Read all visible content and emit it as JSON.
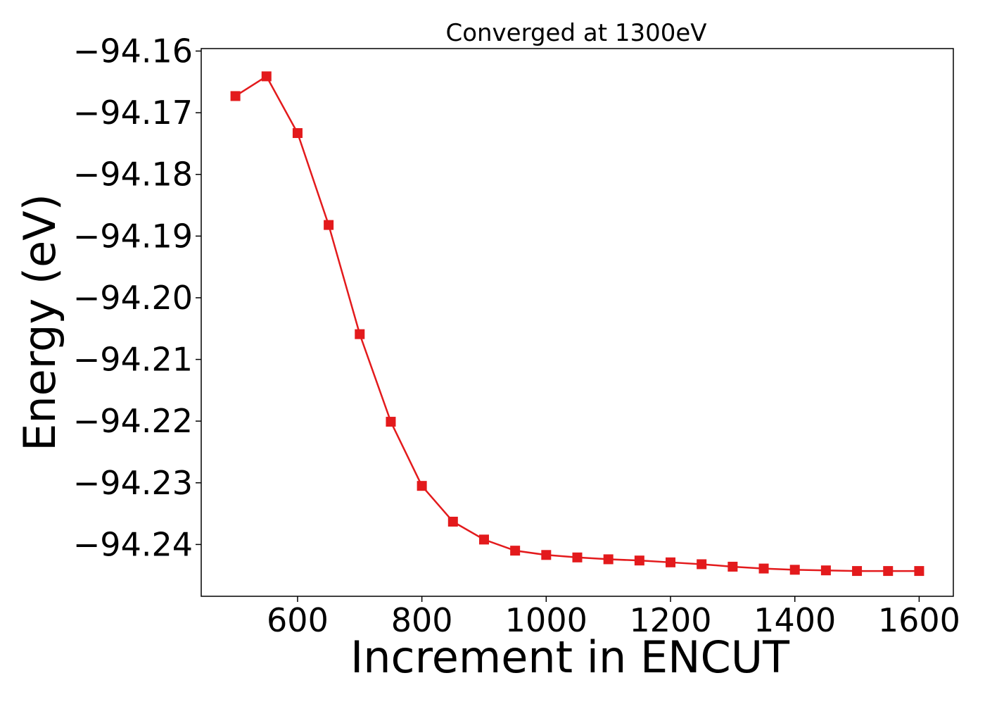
{
  "chart_data": {
    "type": "line",
    "title": "Converged at 1300eV",
    "xlabel": "Increment in ENCUT",
    "ylabel": "Energy (eV)",
    "xlim": [
      445,
      1655
    ],
    "ylim": [
      -94.2484,
      -94.1596
    ],
    "xticks": [
      600,
      800,
      1000,
      1200,
      1400,
      1600
    ],
    "yticks": [
      -94.16,
      -94.17,
      -94.18,
      -94.19,
      -94.2,
      -94.21,
      -94.22,
      -94.23,
      -94.24
    ],
    "xtick_labels": [
      "600",
      "800",
      "1000",
      "1200",
      "1400",
      "1600"
    ],
    "ytick_labels": [
      "−94.16",
      "−94.17",
      "−94.18",
      "−94.19",
      "−94.20",
      "−94.21",
      "−94.22",
      "−94.23",
      "−94.24"
    ],
    "grid": false,
    "series": [
      {
        "color": "#e31a1c",
        "marker": "square",
        "x": [
          500,
          550,
          600,
          650,
          700,
          750,
          800,
          850,
          900,
          950,
          1000,
          1050,
          1100,
          1150,
          1200,
          1250,
          1300,
          1350,
          1400,
          1450,
          1500,
          1550,
          1600
        ],
        "y": [
          -94.1673,
          -94.1641,
          -94.1733,
          -94.1882,
          -94.2059,
          -94.2201,
          -94.2305,
          -94.2363,
          -94.2392,
          -94.241,
          -94.2417,
          -94.2421,
          -94.2424,
          -94.2426,
          -94.2429,
          -94.2432,
          -94.2436,
          -94.2439,
          -94.2441,
          -94.2442,
          -94.2443,
          -94.2443,
          -94.2443
        ]
      }
    ]
  }
}
